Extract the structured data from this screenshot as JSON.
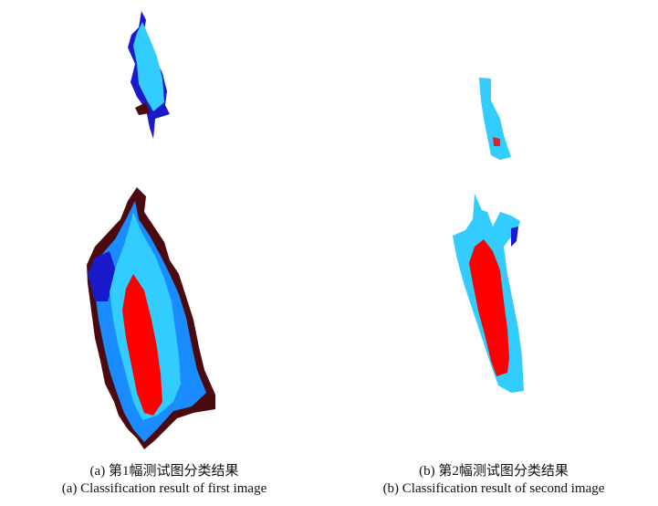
{
  "figures": [
    {
      "caption_zh": "(a) 第1幅测试图分类结果",
      "caption_en": "(a) Classification result of first image"
    },
    {
      "caption_zh": "(b) 第2幅测试图分类结果",
      "caption_en": "(b) Classification result of second image"
    }
  ]
}
